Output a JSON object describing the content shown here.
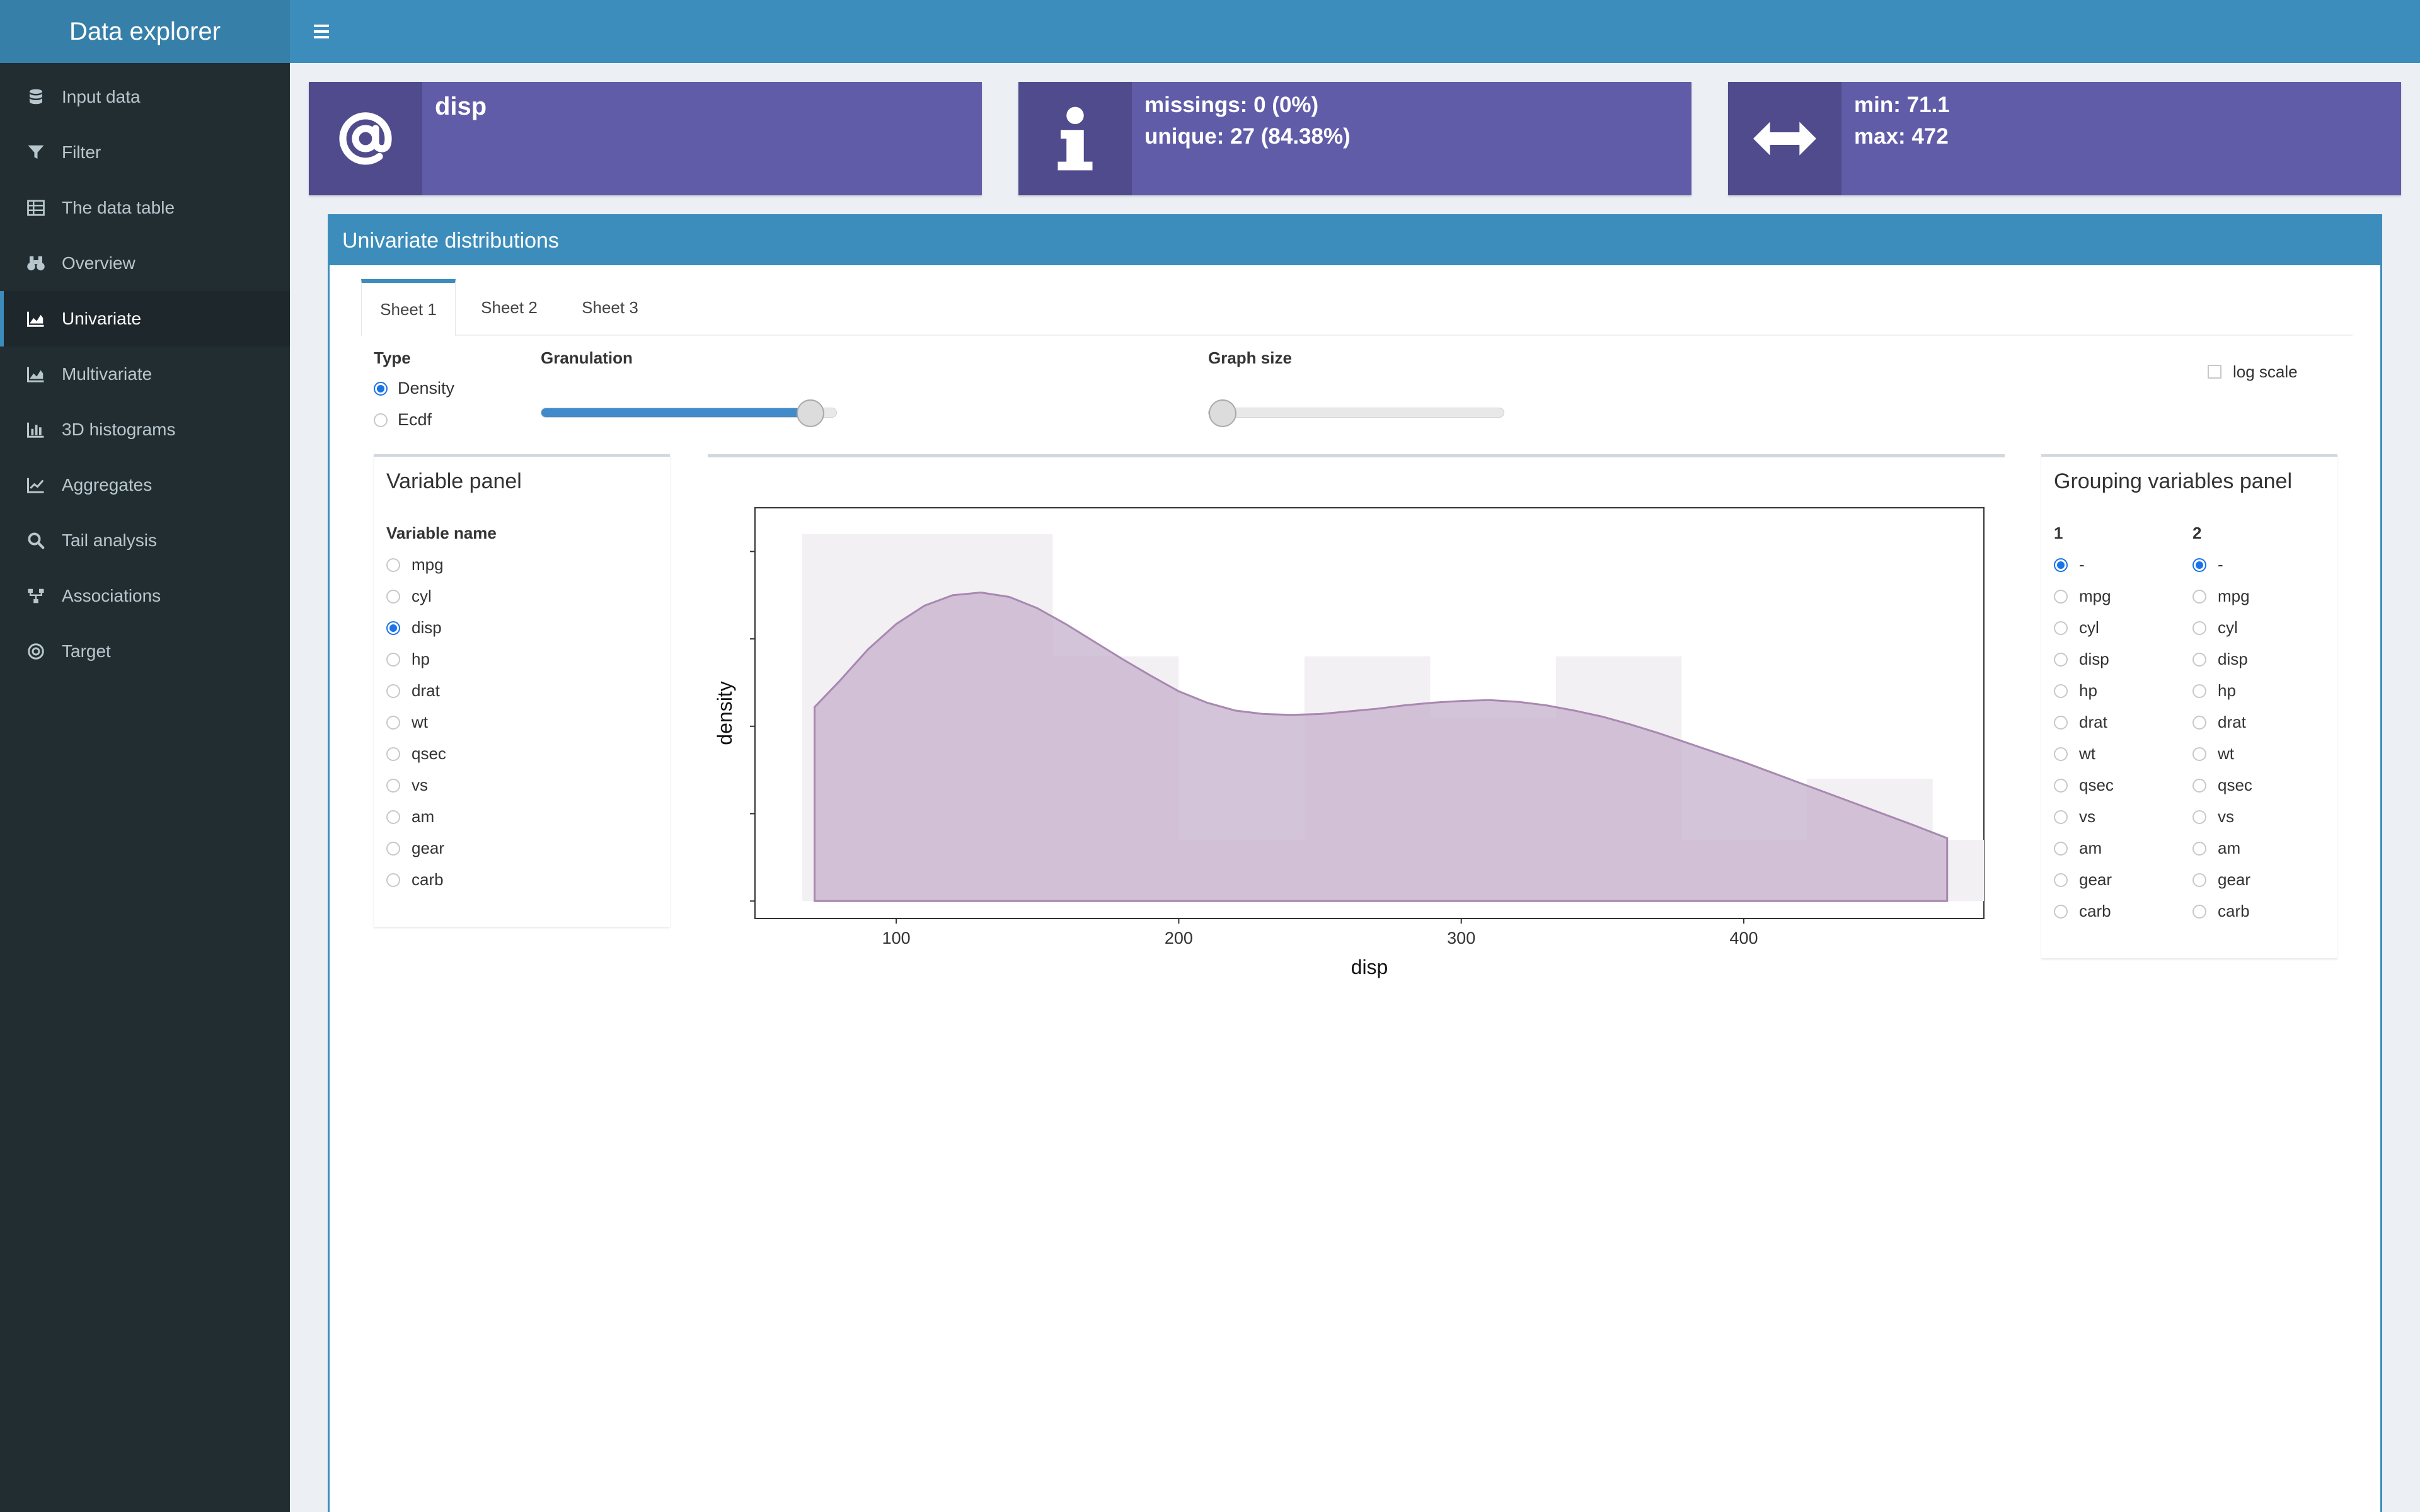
{
  "app": {
    "title": "Data explorer"
  },
  "sidebar": {
    "items": [
      {
        "label": "Input data",
        "icon": "database-icon",
        "active": false
      },
      {
        "label": "Filter",
        "icon": "filter-icon",
        "active": false
      },
      {
        "label": "The data table",
        "icon": "table-icon",
        "active": false
      },
      {
        "label": "Overview",
        "icon": "binoculars-icon",
        "active": false
      },
      {
        "label": "Univariate",
        "icon": "area-chart-icon",
        "active": true
      },
      {
        "label": "Multivariate",
        "icon": "area-chart-icon",
        "active": false
      },
      {
        "label": "3D histograms",
        "icon": "bar-chart-icon",
        "active": false
      },
      {
        "label": "Aggregates",
        "icon": "line-chart-icon",
        "active": false
      },
      {
        "label": "Tail analysis",
        "icon": "search-icon",
        "active": false
      },
      {
        "label": "Associations",
        "icon": "sitemap-icon",
        "active": false
      },
      {
        "label": "Target",
        "icon": "bullseye-icon",
        "active": false
      }
    ]
  },
  "infoboxes": {
    "name": {
      "icon": "at-icon",
      "line1": "disp"
    },
    "missing": {
      "icon": "info-icon",
      "line1": "missings: 0 (0%)",
      "line2": "unique: 27 (84.38%)"
    },
    "range": {
      "icon": "arrows-h-icon",
      "line1": "min: 71.1",
      "line2": "max: 472"
    }
  },
  "colors": {
    "header": "#3c8dbc",
    "infobox": "#605ca8",
    "infobox_icon": "#4f4b8c",
    "sidebar": "#222d32",
    "density_fill": "#c6b0cc",
    "density_line": "#a888b0"
  },
  "main": {
    "title": "Univariate distributions",
    "tabs": [
      "Sheet 1",
      "Sheet 2",
      "Sheet 3"
    ],
    "active_tab": 0,
    "type_label": "Type",
    "type_options": [
      "Density",
      "Ecdf"
    ],
    "type_selected": "Density",
    "granulation_label": "Granulation",
    "granulation_level": 0.95,
    "graph_size_label": "Graph size",
    "graph_size_level": 0.0,
    "log_scale_label": "log scale",
    "log_scale_checked": false
  },
  "variable_panel": {
    "title": "Variable panel",
    "header": "Variable name",
    "variables": [
      "mpg",
      "cyl",
      "disp",
      "hp",
      "drat",
      "wt",
      "qsec",
      "vs",
      "am",
      "gear",
      "carb"
    ],
    "selected": "disp"
  },
  "grouping_panel": {
    "title": "Grouping variables panel",
    "col1_header": "1",
    "col2_header": "2",
    "options": [
      "-",
      "mpg",
      "cyl",
      "disp",
      "hp",
      "drat",
      "wt",
      "qsec",
      "vs",
      "am",
      "gear",
      "carb"
    ],
    "selected1": "-",
    "selected2": "-"
  },
  "chart_data": {
    "type": "area",
    "title": "",
    "xlabel": "disp",
    "ylabel": "density",
    "xlim": [
      50,
      485
    ],
    "ylim": [
      -0.0002,
      0.0045
    ],
    "x_ticks": [
      100,
      200,
      300,
      400
    ],
    "y_tick_labels_shown": false,
    "grid": false,
    "histogram": {
      "bins": [
        {
          "x0": 66.7,
          "x1": 155.4,
          "density": 0.0042
        },
        {
          "x0": 155.4,
          "x1": 200,
          "density": 0.0028
        },
        {
          "x0": 200,
          "x1": 244.5,
          "density": 0.0007
        },
        {
          "x0": 244.5,
          "x1": 289,
          "density": 0.0028
        },
        {
          "x0": 289,
          "x1": 333.5,
          "density": 0.0021
        },
        {
          "x0": 333.5,
          "x1": 378,
          "density": 0.0028
        },
        {
          "x0": 378,
          "x1": 422.4,
          "density": 0.0007
        },
        {
          "x0": 422.4,
          "x1": 466.9,
          "density": 0.0014
        },
        {
          "x0": 466.9,
          "x1": 485,
          "density": 0.0007
        }
      ]
    },
    "series": [
      {
        "name": "",
        "x": [
          71.1,
          80,
          90,
          100,
          110,
          120,
          130,
          140,
          150,
          160,
          170,
          180,
          190,
          200,
          210,
          220,
          230,
          240,
          250,
          260,
          270,
          280,
          290,
          300,
          310,
          320,
          330,
          340,
          350,
          360,
          370,
          380,
          390,
          400,
          410,
          420,
          430,
          440,
          450,
          460,
          472
        ],
        "y": [
          0.00222,
          0.00252,
          0.00288,
          0.00317,
          0.00338,
          0.0035,
          0.00353,
          0.00348,
          0.00335,
          0.00317,
          0.00297,
          0.00277,
          0.00258,
          0.0024,
          0.00227,
          0.00218,
          0.00214,
          0.00213,
          0.00214,
          0.00217,
          0.0022,
          0.00224,
          0.00227,
          0.00229,
          0.0023,
          0.00228,
          0.00224,
          0.00218,
          0.00211,
          0.00202,
          0.00192,
          0.00181,
          0.0017,
          0.00159,
          0.00147,
          0.00135,
          0.00123,
          0.00111,
          0.00099,
          0.00087,
          0.00072
        ]
      }
    ]
  }
}
